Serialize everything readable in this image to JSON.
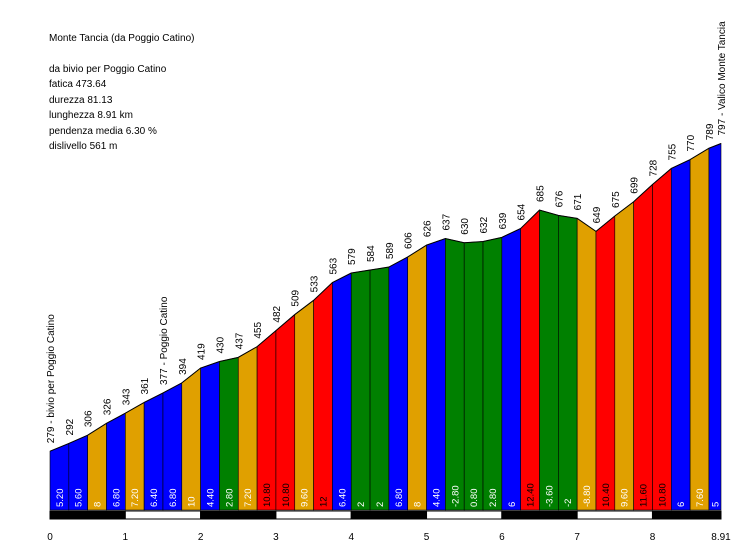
{
  "info": {
    "title": "Monte Tancia (da Poggio Catino)",
    "from": "da bivio per Poggio Catino",
    "fatica": "fatica 473.64",
    "durezza": "durezza 81.13",
    "lunghezza": "lunghezza 8.91 km",
    "pendenza": "pendenza media 6.30 %",
    "dislivello": "dislivello 561 m"
  },
  "colors": {
    "blue": "#0000ff",
    "orange": "#e0a000",
    "green": "#008000",
    "red": "#ff0000",
    "text_on_dark": "#ffffff",
    "text_on_red": "#000000"
  },
  "chart_data": {
    "type": "area",
    "xlabel": "",
    "ylabel": "",
    "x_ticks": [
      "0",
      "1",
      "2",
      "3",
      "4",
      "5",
      "6",
      "7",
      "8",
      "8.91"
    ],
    "x_tick_values": [
      0,
      1,
      2,
      3,
      4,
      5,
      6,
      7,
      8,
      8.91
    ],
    "xlim": [
      0,
      8.91
    ],
    "ylim": [
      170,
      850
    ],
    "distance_km": [
      0,
      0.25,
      0.5,
      0.75,
      1.0,
      1.25,
      1.5,
      1.75,
      2.0,
      2.25,
      2.5,
      2.75,
      3.0,
      3.25,
      3.5,
      3.75,
      4.0,
      4.25,
      4.5,
      4.75,
      5.0,
      5.25,
      5.5,
      5.75,
      6.0,
      6.25,
      6.5,
      6.75,
      7.0,
      7.25,
      7.5,
      7.75,
      8.0,
      8.25,
      8.5,
      8.75,
      8.91
    ],
    "elevations": [
      279,
      292,
      306,
      326,
      343,
      361,
      377,
      394,
      419,
      430,
      437,
      455,
      482,
      509,
      533,
      563,
      579,
      584,
      589,
      606,
      626,
      637,
      630,
      632,
      639,
      654,
      685,
      676,
      671,
      649,
      675,
      699,
      728,
      755,
      770,
      789,
      797
    ],
    "elevation_labels": [
      "279 - bivio per Poggio Catino",
      "292",
      "306",
      "326",
      "343",
      "361",
      "377 - Poggio Catino",
      "394",
      "419",
      "430",
      "437",
      "455",
      "482",
      "509",
      "533",
      "563",
      "579",
      "584",
      "589",
      "606",
      "626",
      "637",
      "630",
      "632",
      "639",
      "654",
      "685",
      "676",
      "671",
      "649",
      "675",
      "699",
      "728",
      "755",
      "770",
      "789",
      "797 - Valico Monte Tancia"
    ],
    "gradients": [
      "5.20",
      "5.60",
      "8",
      "6.80",
      "7.20",
      "6.40",
      "6.80",
      "10",
      "4.40",
      "2.80",
      "7.20",
      "10.80",
      "10.80",
      "9.60",
      "12",
      "6.40",
      "2",
      "2",
      "6.80",
      "8",
      "4.40",
      "-2.80",
      "0.80",
      "2.80",
      "6",
      "12.40",
      "-3.60",
      "-2",
      "-8.80",
      "10.40",
      "9.60",
      "11.60",
      "10.80",
      "6",
      "7.60",
      "5"
    ],
    "segment_colors": [
      "blue",
      "blue",
      "orange",
      "blue",
      "orange",
      "blue",
      "blue",
      "orange",
      "blue",
      "green",
      "orange",
      "red",
      "red",
      "orange",
      "red",
      "blue",
      "green",
      "green",
      "blue",
      "orange",
      "blue",
      "green",
      "green",
      "green",
      "blue",
      "red",
      "green",
      "green",
      "orange",
      "red",
      "orange",
      "red",
      "red",
      "blue",
      "orange",
      "blue"
    ]
  }
}
